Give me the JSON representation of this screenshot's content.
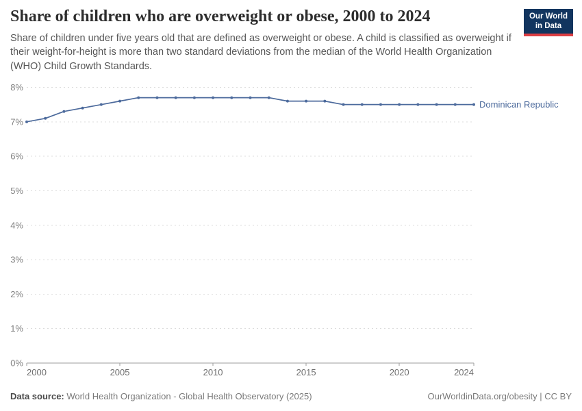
{
  "header": {
    "title": "Share of children who are overweight or obese, 2000 to 2024",
    "subtitle": "Share of children under five years old that are defined as overweight or obese. A child is classified as overweight if their weight-for-height is more than two standard deviations from the median of the World Health Organization (WHO) Child Growth Standards.",
    "logo": {
      "line1": "Our World",
      "line2": "in Data",
      "bg_color": "#12355f",
      "accent_color": "#dc3e43"
    }
  },
  "chart_data": {
    "type": "line",
    "title": "Share of children who are overweight or obese, 2000 to 2024",
    "x": [
      2000,
      2001,
      2002,
      2003,
      2004,
      2005,
      2006,
      2007,
      2008,
      2009,
      2010,
      2011,
      2012,
      2013,
      2014,
      2015,
      2016,
      2017,
      2018,
      2019,
      2020,
      2021,
      2022,
      2023,
      2024
    ],
    "series": [
      {
        "name": "Dominican Republic",
        "color": "#4c6a9c",
        "values": [
          7.0,
          7.1,
          7.3,
          7.4,
          7.5,
          7.6,
          7.7,
          7.7,
          7.7,
          7.7,
          7.7,
          7.7,
          7.7,
          7.7,
          7.6,
          7.6,
          7.6,
          7.5,
          7.5,
          7.5,
          7.5,
          7.5,
          7.5,
          7.5,
          7.5
        ]
      }
    ],
    "xlim": [
      2000,
      2024
    ],
    "ylim": [
      0,
      8
    ],
    "x_ticks": [
      2000,
      2005,
      2010,
      2015,
      2020,
      2024
    ],
    "y_ticks": [
      0,
      1,
      2,
      3,
      4,
      5,
      6,
      7,
      8
    ],
    "y_tick_suffix": "%",
    "xlabel": "",
    "ylabel": "",
    "grid": "horizontal-dashed",
    "legend_position": "end-of-line-label"
  },
  "footer": {
    "data_source_label": "Data source:",
    "data_source_value": "World Health Organization - Global Health Observatory (2025)",
    "attribution": "OurWorldinData.org/obesity | CC BY"
  }
}
